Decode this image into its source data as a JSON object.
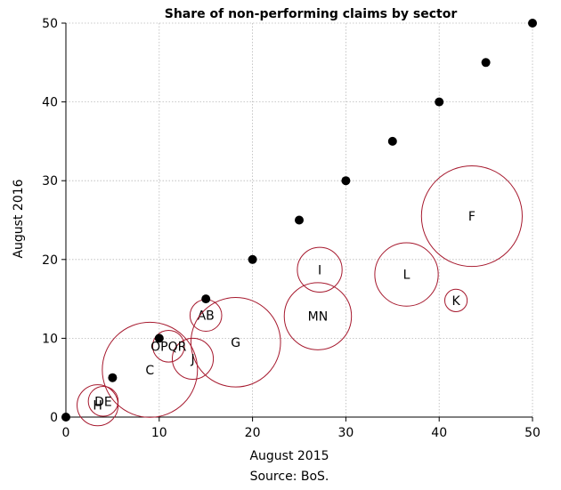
{
  "chart_data": {
    "type": "scatter",
    "title": "Share of non-performing claims by sector",
    "xlabel": "August 2015",
    "ylabel": "August 2016",
    "source": "Source: BoS.",
    "xlim": [
      0,
      50
    ],
    "ylim": [
      0,
      50
    ],
    "x_ticks": [
      "0",
      "10",
      "20",
      "30",
      "40",
      "50"
    ],
    "y_ticks": [
      "0",
      "10",
      "20",
      "30",
      "40",
      "50"
    ],
    "grid": true,
    "reference_points": [
      {
        "x": 0,
        "y": 0
      },
      {
        "x": 5,
        "y": 5
      },
      {
        "x": 10,
        "y": 10
      },
      {
        "x": 15,
        "y": 15
      },
      {
        "x": 20,
        "y": 20
      },
      {
        "x": 25,
        "y": 25
      },
      {
        "x": 30,
        "y": 30
      },
      {
        "x": 35,
        "y": 35
      },
      {
        "x": 40,
        "y": 40
      },
      {
        "x": 45,
        "y": 45
      },
      {
        "x": 50,
        "y": 50
      }
    ],
    "bubbles": [
      {
        "label": "AB",
        "x": 15.0,
        "y": 12.9,
        "size": 1.7
      },
      {
        "label": "C",
        "x": 9.0,
        "y": 6.0,
        "size": 5.1
      },
      {
        "label": "DE",
        "x": 4.0,
        "y": 2.0,
        "size": 1.6
      },
      {
        "label": "F",
        "x": 43.5,
        "y": 25.5,
        "size": 5.4
      },
      {
        "label": "G",
        "x": 18.2,
        "y": 9.5,
        "size": 4.8
      },
      {
        "label": "H",
        "x": 3.4,
        "y": 1.5,
        "size": 2.2
      },
      {
        "label": "I",
        "x": 27.2,
        "y": 18.7,
        "size": 2.4
      },
      {
        "label": "J",
        "x": 13.6,
        "y": 7.4,
        "size": 2.2
      },
      {
        "label": "K",
        "x": 41.8,
        "y": 14.8,
        "size": 1.2
      },
      {
        "label": "L",
        "x": 36.5,
        "y": 18.1,
        "size": 3.4
      },
      {
        "label": "MN",
        "x": 27.0,
        "y": 12.8,
        "size": 3.6
      },
      {
        "label": "OPQR",
        "x": 11.0,
        "y": 9.0,
        "size": 1.7
      }
    ],
    "colors": {
      "bubble": "#a6192e",
      "points": "#000000"
    }
  }
}
